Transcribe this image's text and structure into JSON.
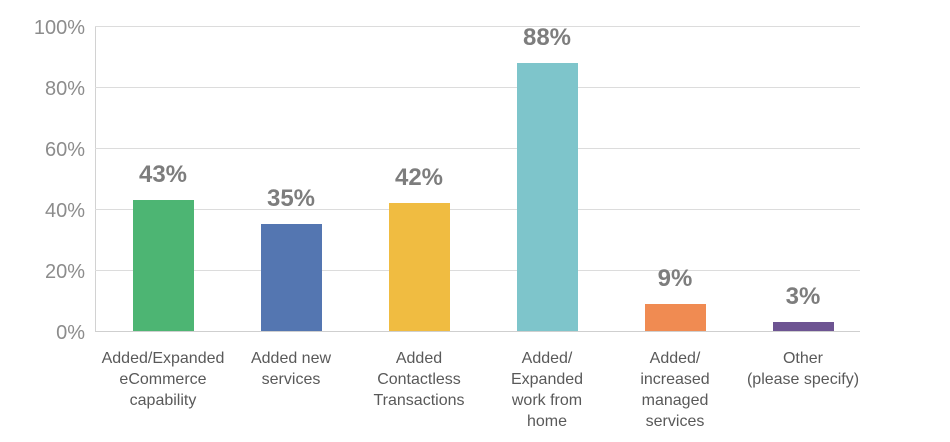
{
  "chart_data": {
    "type": "bar",
    "title": "",
    "xlabel": "",
    "ylabel": "",
    "categories": [
      "Added/Expanded eCommerce capability",
      "Added new services",
      "Added Contactless Transactions",
      "Added/ Expanded work from home",
      "Added/ increased managed services",
      "Other (please specify)"
    ],
    "category_lines": [
      [
        "Added/Expanded",
        "eCommerce",
        "capability"
      ],
      [
        "Added new",
        "services"
      ],
      [
        "Added",
        "Contactless",
        "Transactions"
      ],
      [
        "Added/",
        "Expanded",
        "work from",
        "home"
      ],
      [
        "Added/",
        "increased",
        "managed",
        "services"
      ],
      [
        "Other",
        "(please specify)"
      ]
    ],
    "values": [
      43,
      35,
      42,
      88,
      9,
      3
    ],
    "value_labels": [
      "43%",
      "35%",
      "42%",
      "88%",
      "9%",
      "3%"
    ],
    "bar_colors": [
      "#4db573",
      "#5476b1",
      "#f0bc41",
      "#7ec5cb",
      "#f08b52",
      "#6d5492"
    ],
    "ylim": [
      0,
      100
    ],
    "y_tick_step": 20,
    "y_tick_labels": [
      "0%",
      "20%",
      "40%",
      "60%",
      "80%",
      "100%"
    ],
    "grid": true,
    "legend_position": "none"
  },
  "colors": {
    "background": "#ffffff",
    "gridline": "#dcdcdc",
    "axis_line": "#d2d2d2",
    "tick_label": "#8c8c8c",
    "value_label": "#7d7d7d",
    "category_label": "#595959"
  }
}
